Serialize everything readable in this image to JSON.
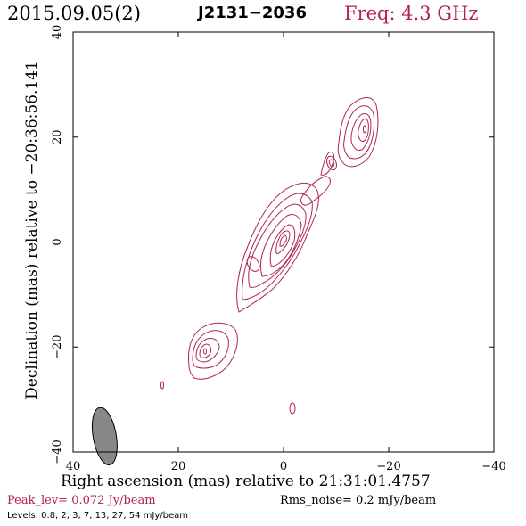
{
  "header": {
    "date": "2015.09.05(2)",
    "source": "J2131−2036",
    "freq": "Freq: 4.3 GHz"
  },
  "chart_data": {
    "type": "contour",
    "xlabel": "Right ascension (mas) relative to 21:31:01.4757",
    "ylabel": "Declination (mas) relative to −20:36:56.141",
    "xlim": [
      40,
      -40
    ],
    "ylim": [
      -40,
      40
    ],
    "xticks": [
      "40",
      "20",
      "0",
      "−20",
      "−40"
    ],
    "yticks": [
      "−40",
      "−20",
      "0",
      "20",
      "40"
    ],
    "contour_color": "#b0244f",
    "beam": {
      "x": 34.0,
      "y": -37.0,
      "major_mas": 4.6,
      "minor_mas": 2.0,
      "pa_deg": -10
    }
  },
  "footer": {
    "peak": "Peak_lev=  0.072 Jy/beam",
    "rms": "Rms_noise=   0.2 mJy/beam",
    "levels": "Levels: 0.8,    2,    3,    7,   13,   27,   54 mJy/beam"
  }
}
